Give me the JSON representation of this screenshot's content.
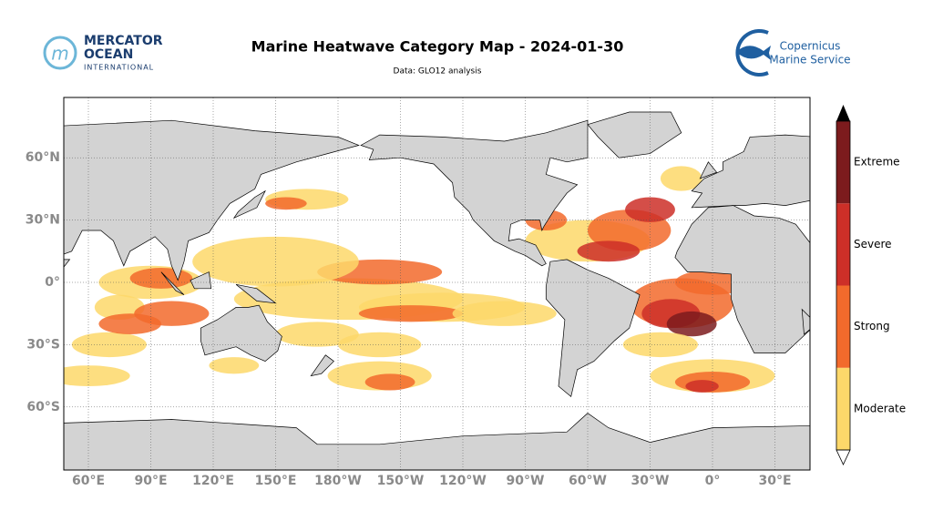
{
  "header": {
    "title": "Marine Heatwave Category Map - 2024-01-30",
    "subtitle": "Data: GLO12 analysis"
  },
  "logos": {
    "left": [
      "MERCATOR",
      "OCEAN",
      "INTERNATIONAL"
    ],
    "right": [
      "Copernicus",
      "Marine Service"
    ]
  },
  "map": {
    "x_ticks": [
      "60°E",
      "90°E",
      "120°E",
      "150°E",
      "180°W",
      "150°W",
      "120°W",
      "90°W",
      "60°W",
      "30°W",
      "0°",
      "30°E"
    ],
    "y_ticks": [
      "60°N",
      "30°N",
      "0°",
      "30°S",
      "60°S"
    ]
  },
  "legend": {
    "categories": [
      {
        "name": "Moderate",
        "color": "#fdd86a"
      },
      {
        "name": "Strong",
        "color": "#f26a2c"
      },
      {
        "name": "Severe",
        "color": "#cd2f28"
      },
      {
        "name": "Extreme",
        "color": "#7c1b1d"
      }
    ]
  }
}
